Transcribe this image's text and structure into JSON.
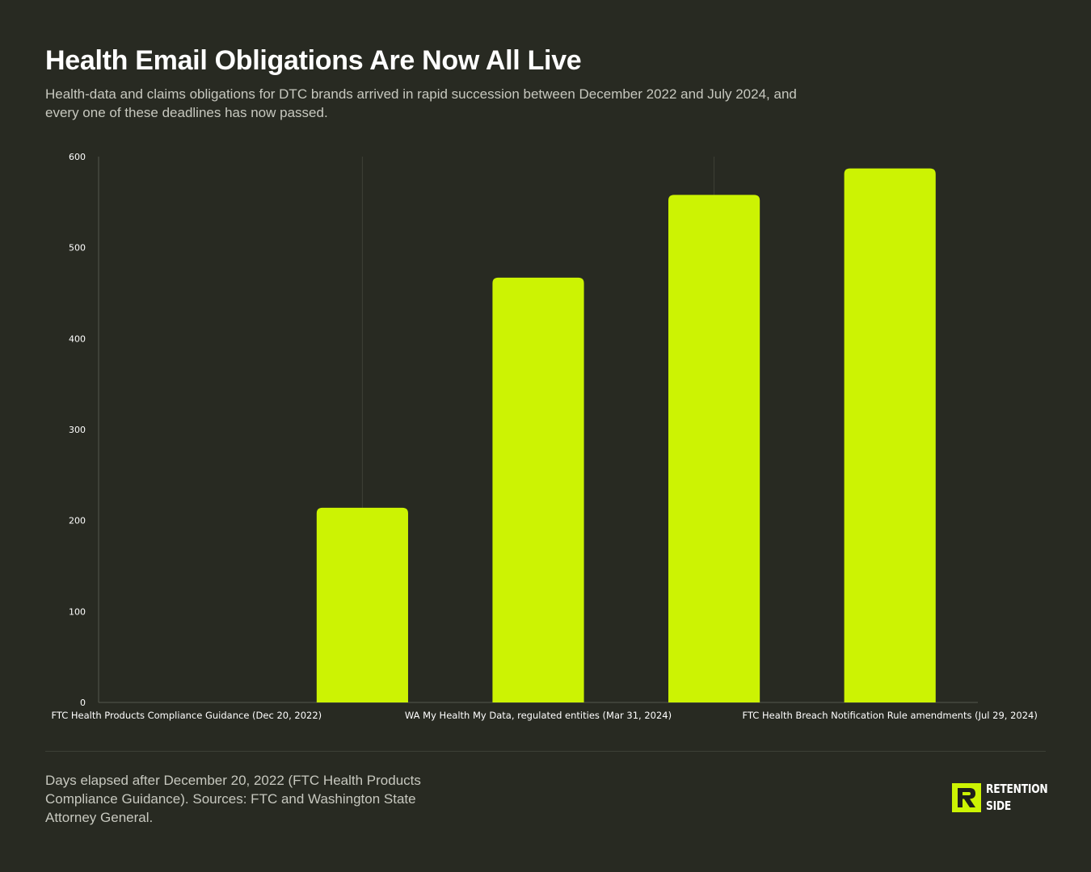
{
  "header": {
    "title": "Health Email Obligations Are Now All Live",
    "subtitle": "Health-data and claims obligations for DTC brands arrived in rapid succession between December 2022 and July 2024, and every one of these deadlines has now passed."
  },
  "footer": {
    "note": "Days elapsed after December 20, 2022 (FTC Health Products Compliance Guidance). Sources: FTC and Washington State Attorney General.",
    "brand_line1": "RETENTION",
    "brand_line2": "SIDE"
  },
  "colors": {
    "background": "#282a22",
    "bar": "#ccf303",
    "axis": "#55584d",
    "text": "#ffffff",
    "muted": "#c7c8bf"
  },
  "chart_data": {
    "type": "bar",
    "categories": [
      "FTC Health Products Compliance Guidance (Dec 20, 2022)",
      "",
      "WA My Health My Data, regulated entities (Mar 31, 2024)",
      "",
      "FTC Health Breach Notification Rule amendments (Jul 29, 2024)"
    ],
    "values": [
      0,
      214,
      467,
      558,
      587
    ],
    "ylim": [
      0,
      600
    ],
    "yticks": [
      0,
      100,
      200,
      300,
      400,
      500,
      600
    ],
    "xlabel": "",
    "ylabel": "",
    "grid": false,
    "legend": "none"
  }
}
